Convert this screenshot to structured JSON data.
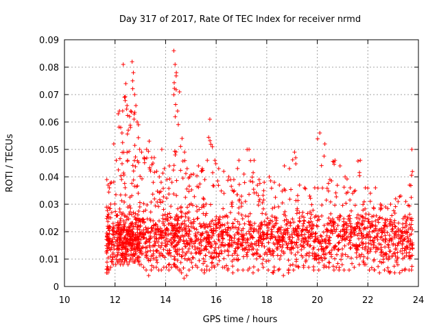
{
  "chart_data": {
    "type": "scatter",
    "title": "Day 317 of 2017, Rate Of TEC Index for receiver nrmd",
    "xlabel": "GPS time / hours",
    "ylabel": "ROTI / TECUs",
    "xlim": [
      10,
      24
    ],
    "ylim": [
      0,
      0.09
    ],
    "x_ticks": [
      "10",
      "12",
      "14",
      "16",
      "18",
      "20",
      "22",
      "24"
    ],
    "y_ticks": [
      "0",
      "0.01",
      "0.02",
      "0.03",
      "0.04",
      "0.05",
      "0.06",
      "0.07",
      "0.08",
      "0.09"
    ],
    "grid": true,
    "marker": "plus",
    "color": "#ff0000",
    "series": [
      {
        "x": [
          11.65,
          11.7,
          11.75,
          11.8,
          11.9,
          12.0,
          12.1,
          12.15,
          12.2,
          12.25,
          12.3,
          12.35,
          12.4,
          12.45,
          12.5,
          12.55,
          12.6,
          12.65,
          12.7,
          12.75,
          12.8,
          12.85,
          12.9,
          12.95,
          13.0,
          13.1,
          13.2,
          13.3,
          13.4,
          13.5,
          13.6,
          13.7,
          13.8,
          13.9,
          14.0,
          14.1,
          14.2,
          14.3,
          14.35,
          14.4,
          14.45,
          14.5,
          14.6,
          14.7,
          14.8,
          14.9,
          15.0,
          15.2,
          15.4,
          15.5,
          15.6,
          15.7,
          15.8,
          15.9,
          16.0,
          16.2,
          16.4,
          16.6,
          16.8,
          17.0,
          17.2,
          17.4,
          17.6,
          17.8,
          18.0,
          18.2,
          18.4,
          18.6,
          18.8,
          19.0,
          19.2,
          19.4,
          19.6,
          19.8,
          20.0,
          20.2,
          20.4,
          20.6,
          20.8,
          21.0,
          21.2,
          21.4,
          21.6,
          21.8,
          22.0,
          22.2,
          22.4,
          22.6,
          22.8,
          23.0,
          23.2,
          23.4,
          23.6,
          23.7
        ],
        "y_max": [
          0.039,
          0.037,
          0.036,
          0.038,
          0.052,
          0.046,
          0.063,
          0.064,
          0.058,
          0.056,
          0.081,
          0.069,
          0.074,
          0.066,
          0.057,
          0.062,
          0.064,
          0.082,
          0.078,
          0.07,
          0.066,
          0.06,
          0.059,
          0.05,
          0.049,
          0.047,
          0.05,
          0.053,
          0.047,
          0.047,
          0.042,
          0.04,
          0.05,
          0.043,
          0.039,
          0.044,
          0.038,
          0.086,
          0.081,
          0.078,
          0.064,
          0.071,
          0.054,
          0.049,
          0.043,
          0.04,
          0.041,
          0.044,
          0.043,
          0.039,
          0.046,
          0.061,
          0.051,
          0.046,
          0.043,
          0.042,
          0.04,
          0.039,
          0.046,
          0.041,
          0.05,
          0.046,
          0.039,
          0.038,
          0.04,
          0.038,
          0.037,
          0.044,
          0.043,
          0.049,
          0.037,
          0.036,
          0.033,
          0.036,
          0.056,
          0.052,
          0.039,
          0.046,
          0.044,
          0.04,
          0.036,
          0.035,
          0.046,
          0.036,
          0.034,
          0.036,
          0.03,
          0.029,
          0.03,
          0.032,
          0.033,
          0.031,
          0.037,
          0.05
        ],
        "y_min": [
          0.005,
          0.005,
          0.006,
          0.007,
          0.008,
          0.008,
          0.009,
          0.009,
          0.008,
          0.009,
          0.008,
          0.009,
          0.01,
          0.009,
          0.008,
          0.009,
          0.01,
          0.01,
          0.009,
          0.009,
          0.01,
          0.01,
          0.009,
          0.008,
          0.008,
          0.007,
          0.006,
          0.004,
          0.006,
          0.007,
          0.007,
          0.006,
          0.006,
          0.007,
          0.007,
          0.006,
          0.007,
          0.008,
          0.008,
          0.007,
          0.007,
          0.006,
          0.005,
          0.003,
          0.004,
          0.006,
          0.007,
          0.007,
          0.006,
          0.005,
          0.006,
          0.006,
          0.007,
          0.007,
          0.008,
          0.007,
          0.006,
          0.005,
          0.006,
          0.006,
          0.006,
          0.005,
          0.006,
          0.007,
          0.006,
          0.005,
          0.006,
          0.004,
          0.005,
          0.006,
          0.007,
          0.007,
          0.007,
          0.006,
          0.006,
          0.007,
          0.007,
          0.006,
          0.006,
          0.006,
          0.006,
          0.007,
          0.008,
          0.008,
          0.006,
          0.006,
          0.005,
          0.006,
          0.005,
          0.005,
          0.005,
          0.006,
          0.006,
          0.006
        ],
        "core_center": 0.018
      }
    ]
  }
}
